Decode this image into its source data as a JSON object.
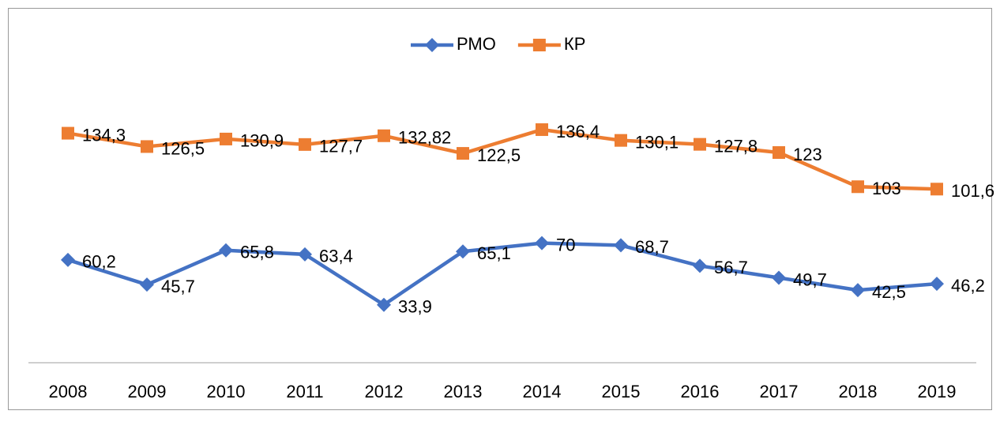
{
  "chart_data": {
    "type": "line",
    "categories": [
      "2008",
      "2009",
      "2010",
      "2011",
      "2012",
      "2013",
      "2014",
      "2015",
      "2016",
      "2017",
      "2018",
      "2019"
    ],
    "series": [
      {
        "name": "РМО",
        "color": "#4472c4",
        "marker": "diamond",
        "values": [
          60.2,
          45.7,
          65.8,
          63.4,
          33.9,
          65.1,
          70,
          68.7,
          56.7,
          49.7,
          42.5,
          46.2
        ],
        "value_labels": [
          "60,2",
          "45,7",
          "65,8",
          "63,4",
          "33,9",
          "65,1",
          "70",
          "68,7",
          "56,7",
          "49,7",
          "42,5",
          "46,2"
        ]
      },
      {
        "name": "КР",
        "color": "#ed7d31",
        "marker": "square",
        "values": [
          134.3,
          126.5,
          130.9,
          127.7,
          132.82,
          122.5,
          136.4,
          130.1,
          127.8,
          123,
          103,
          101.6
        ],
        "value_labels": [
          "134,3",
          "126,5",
          "130,9",
          "127,7",
          "132,82",
          "122,5",
          "136,4",
          "130,1",
          "127,8",
          "123",
          "103",
          "101,6"
        ]
      }
    ],
    "ylim": [
      0,
      160
    ],
    "legend": "top"
  }
}
